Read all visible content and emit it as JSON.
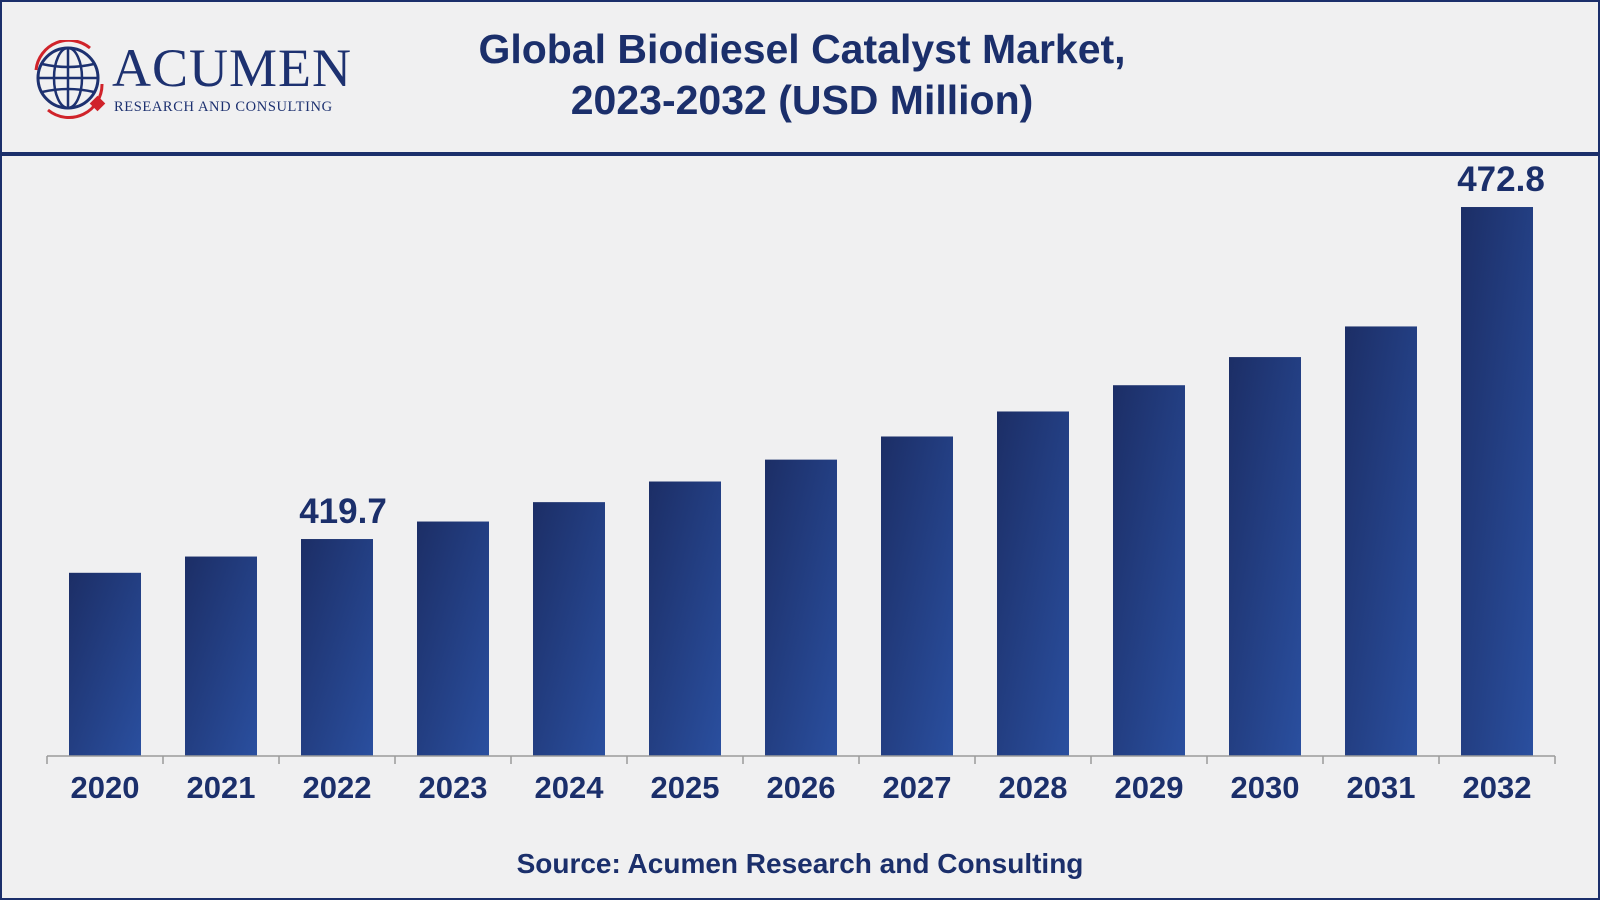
{
  "brand": {
    "logo_text": "ACUMEN",
    "logo_subtitle": "RESEARCH AND CONSULTING",
    "primary_color": "#1b2f6b",
    "accent_color": "#d0232a"
  },
  "title": {
    "line1": "Global Biodiesel Catalyst Market,",
    "line2": "2023-2032 (USD Million)"
  },
  "source": "Source: Acumen Research and Consulting",
  "chart_data": {
    "type": "bar",
    "categories": [
      "2020",
      "2021",
      "2022",
      "2023",
      "2024",
      "2025",
      "2026",
      "2027",
      "2028",
      "2029",
      "2030",
      "2031",
      "2032"
    ],
    "values": [
      414.3,
      416.9,
      419.7,
      422.5,
      425.6,
      428.9,
      432.4,
      436.1,
      440.1,
      444.3,
      448.8,
      453.7,
      472.8
    ],
    "data_labels": {
      "2022": "419.7",
      "2032": "472.8"
    },
    "ylim": [
      385,
      480
    ],
    "xlabel": "",
    "ylabel": "",
    "bar_color_top": "#1c2e66",
    "bar_color_bottom": "#2a4f9f",
    "grid": false,
    "legend": "none"
  }
}
